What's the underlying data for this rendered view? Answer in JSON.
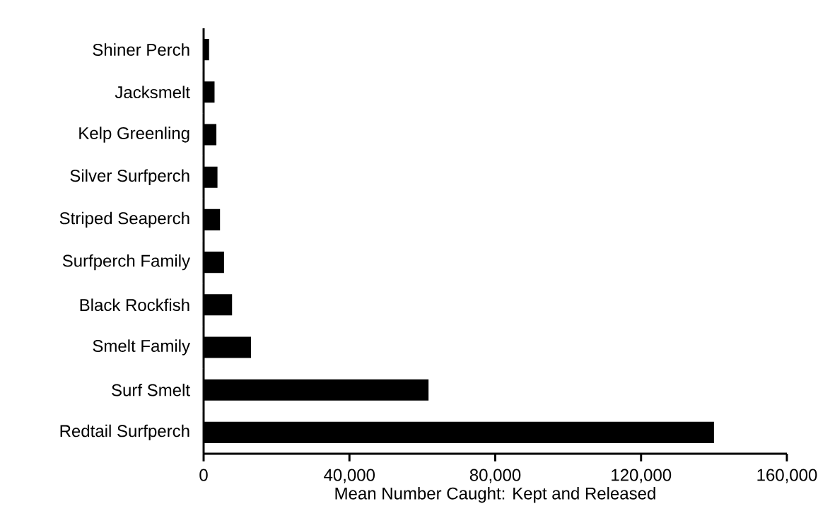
{
  "chart_data": {
    "type": "bar",
    "orientation": "horizontal",
    "categories": [
      "Shiner Perch",
      "Jacksmelt",
      "Kelp Greenling",
      "Silver Surfperch",
      "Striped Seaperch",
      "Surfperch Family",
      "Black Rockfish",
      "Smelt Family",
      "Surf Smelt",
      "Redtail Surfperch"
    ],
    "values": [
      1500,
      3000,
      3500,
      3800,
      4500,
      5600,
      7800,
      13000,
      61700,
      140000
    ],
    "color": "#000000",
    "xlabel": "Mean Number Caught: Kept and Released",
    "xlim": [
      0,
      160000
    ],
    "xticks": [
      0,
      {
        "value": 40000,
        "label": "40,000"
      },
      {
        "value": 80000,
        "label": "80,000"
      },
      {
        "value": 120000,
        "label": "120,000"
      },
      {
        "value": 160000,
        "label": "160,000"
      }
    ],
    "marker": "none"
  }
}
